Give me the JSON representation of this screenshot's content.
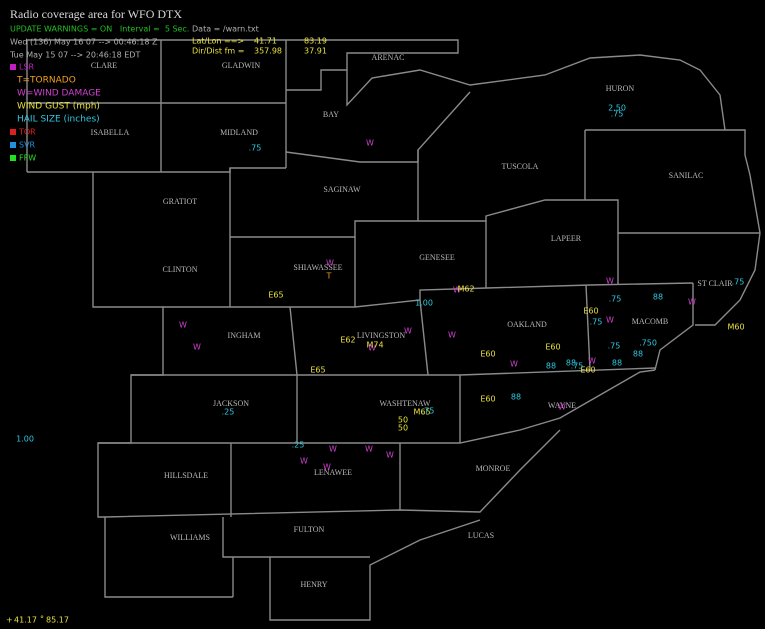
{
  "header": {
    "title": "Radio coverage area for WFO DTX",
    "status": "UPDATE WARNINGS = ON   Interval =  5 Sec.",
    "data_file": "Data = /warn.txt",
    "utc_time": "Wed (136) May 16 07 --> 00:46:18 Z",
    "local_time": "Tue May 15 07 --> 20:46:18 EDT",
    "latlon": {
      "label": "Lat/Lon ==>",
      "lat": "41.71",
      "lon": "83.19"
    },
    "dirdist": {
      "label": "Dir/Dist fm =",
      "dir": "357.98",
      "dist": "37.91"
    }
  },
  "legend": {
    "lsr": "LSR",
    "tornado": "T=TORNADO",
    "wind_damage": "W=WIND DAMAGE",
    "wind_gust": "WIND GUST (mph)",
    "hail": "HAIL SIZE (inches)",
    "tor": "TOR",
    "svr": "SVR",
    "ffw": "FFW"
  },
  "counties": [
    "CLARE",
    "GLADWIN",
    "ARENAC",
    "HURON",
    "BAY",
    "ISABELLA",
    "MIDLAND",
    "TUSCOLA",
    "SANILAC",
    "GRATIOT",
    "SAGINAW",
    "LAPEER",
    "GENESEE",
    "CLINTON",
    "SHIAWASSEE",
    "ST CLAIR",
    "OAKLAND",
    "MACOMB",
    "INGHAM",
    "LIVINGSTON",
    "JACKSON",
    "WASHTENAW",
    "WAYNE",
    "HILLSDALE",
    "LENAWEE",
    "MONROE",
    "WILLIAMS",
    "FULTON",
    "LUCAS",
    "HENRY"
  ],
  "reports": {
    "tornado": [
      "T"
    ],
    "wind_damage": [
      "W",
      "W",
      "W",
      "W",
      "W",
      "W",
      "W",
      "W",
      "W",
      "W",
      "W",
      "W",
      "W",
      "W",
      "W",
      "W",
      "W",
      "W",
      "W"
    ],
    "wind_gust": [
      "E65",
      "M62",
      "E62",
      "M74",
      "E65",
      "E60",
      "E60",
      "E60",
      "E60",
      "E60",
      "M60",
      "M65",
      "50",
      "50"
    ],
    "hail": [
      ".75",
      "2.50",
      ".75",
      "1.00",
      ".75",
      "88",
      ".75",
      ".75",
      ".75",
      ".750",
      "88",
      "88",
      "88",
      "88",
      ".75",
      "88",
      ".25",
      ".25",
      "1.00",
      ".75"
    ]
  },
  "cursor": {
    "marker": "+",
    "lat": "41.17",
    "deg": "°",
    "lon": "85.17"
  }
}
